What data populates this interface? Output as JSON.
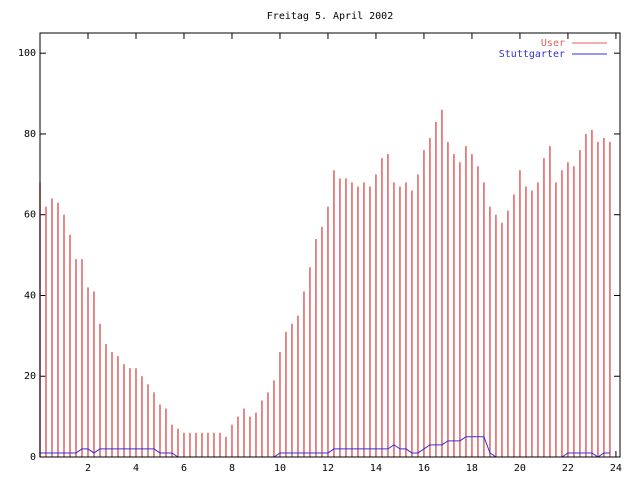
{
  "chart_data": {
    "type": "impulses",
    "title": "Freitag 5. April 2002",
    "x": [
      0,
      0.25,
      0.5,
      0.75,
      1,
      1.25,
      1.5,
      1.75,
      2,
      2.25,
      2.5,
      2.75,
      3,
      3.25,
      3.5,
      3.75,
      4,
      4.25,
      4.5,
      4.75,
      5,
      5.25,
      5.5,
      5.75,
      6,
      6.25,
      6.5,
      6.75,
      7,
      7.25,
      7.5,
      7.75,
      8,
      8.25,
      8.5,
      8.75,
      9,
      9.25,
      9.5,
      9.75,
      10,
      10.25,
      10.5,
      10.75,
      11,
      11.25,
      11.5,
      11.75,
      12,
      12.25,
      12.5,
      12.75,
      13,
      13.25,
      13.5,
      13.75,
      14,
      14.25,
      14.5,
      14.75,
      15,
      15.25,
      15.5,
      15.75,
      16,
      16.25,
      16.5,
      16.75,
      17,
      17.25,
      17.5,
      17.75,
      18,
      18.25,
      18.5,
      18.75,
      19,
      19.25,
      19.5,
      19.75,
      20,
      20.25,
      20.5,
      20.75,
      21,
      21.25,
      21.5,
      21.75,
      22,
      22.25,
      22.5,
      22.75,
      23,
      23.25,
      23.5,
      23.75
    ],
    "series": [
      {
        "name": "User",
        "color": "#e06060",
        "style": "impulses",
        "values": [
          68,
          62,
          64,
          63,
          60,
          55,
          49,
          49,
          42,
          41,
          33,
          28,
          26,
          25,
          23,
          22,
          22,
          20,
          18,
          16,
          13,
          12,
          8,
          7,
          6,
          6,
          6,
          6,
          6,
          6,
          6,
          5,
          8,
          10,
          12,
          10,
          11,
          14,
          16,
          19,
          26,
          31,
          33,
          35,
          41,
          47,
          54,
          57,
          62,
          71,
          69,
          69,
          68,
          67,
          68,
          67,
          70,
          74,
          75,
          68,
          67,
          68,
          66,
          70,
          76,
          79,
          83,
          86,
          78,
          75,
          73,
          77,
          75,
          72,
          68,
          62,
          60,
          58,
          61,
          65,
          71,
          67,
          66,
          68,
          74,
          77,
          68,
          71,
          73,
          72,
          76,
          80,
          81,
          78,
          79,
          78
        ]
      },
      {
        "name": "Stuttgarter",
        "color": "#3030e0",
        "style": "line",
        "values": [
          1,
          1,
          1,
          1,
          1,
          1,
          1,
          2,
          2,
          1,
          2,
          2,
          2,
          2,
          2,
          2,
          2,
          2,
          2,
          2,
          1,
          1,
          1,
          0,
          0,
          0,
          0,
          0,
          0,
          0,
          0,
          0,
          0,
          0,
          0,
          0,
          0,
          0,
          0,
          0,
          1,
          1,
          1,
          1,
          1,
          1,
          1,
          1,
          1,
          2,
          2,
          2,
          2,
          2,
          2,
          2,
          2,
          2,
          2,
          3,
          2,
          2,
          1,
          1,
          2,
          3,
          3,
          3,
          4,
          4,
          4,
          5,
          5,
          5,
          5,
          1,
          0,
          0,
          0,
          0,
          0,
          0,
          0,
          0,
          0,
          0,
          0,
          0,
          1,
          1,
          1,
          1,
          1,
          0,
          1,
          1
        ]
      }
    ],
    "xlim": [
      0,
      24.17
    ],
    "xticks": [
      2,
      4,
      6,
      8,
      10,
      12,
      14,
      16,
      18,
      20,
      22,
      24
    ],
    "ylim": [
      0,
      105
    ],
    "yticks": [
      0,
      20,
      40,
      60,
      80,
      100
    ],
    "legend": "top-right"
  }
}
